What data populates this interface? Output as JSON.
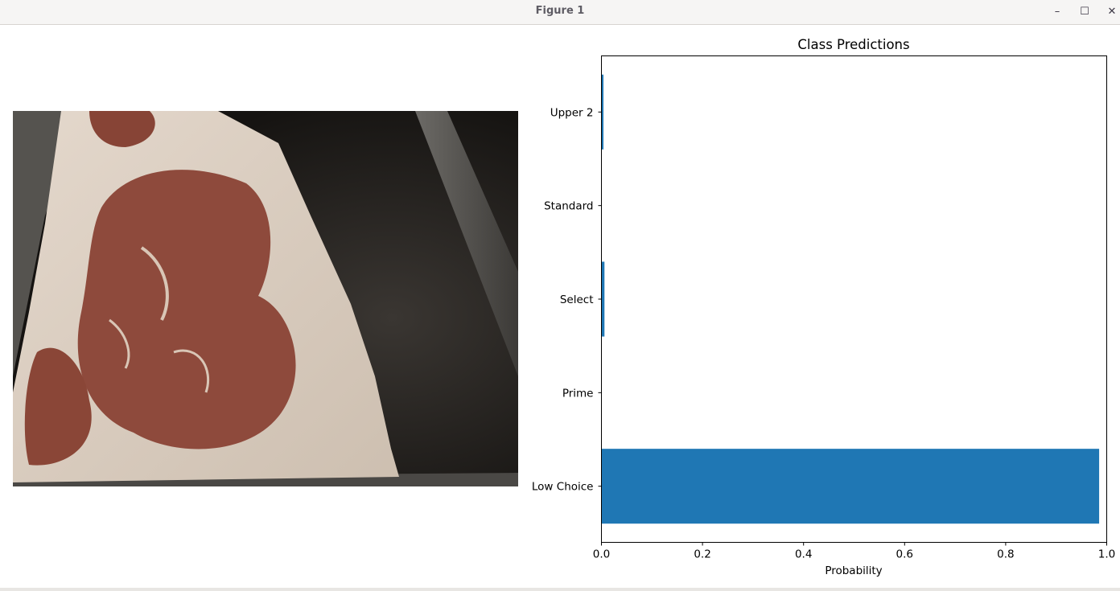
{
  "window": {
    "title": "Figure 1",
    "controls": {
      "minimize": "–",
      "maximize": "☐",
      "close": "✕"
    }
  },
  "image_panel": {
    "content": "raw beef steak cross-section photograph"
  },
  "chart_data": {
    "type": "bar",
    "orientation": "horizontal",
    "title": "Class Predictions",
    "xlabel": "Probability",
    "ylabel": "",
    "categories": [
      "Low Choice",
      "Prime",
      "Select",
      "Standard",
      "Upper 2"
    ],
    "values": [
      0.985,
      0.0,
      0.006,
      0.0,
      0.004
    ],
    "xlim": [
      0.0,
      1.0
    ],
    "xticks": [
      "0.0",
      "0.2",
      "0.4",
      "0.6",
      "0.8",
      "1.0"
    ],
    "bar_color": "#1f77b4",
    "grid": false,
    "legend": "none"
  }
}
